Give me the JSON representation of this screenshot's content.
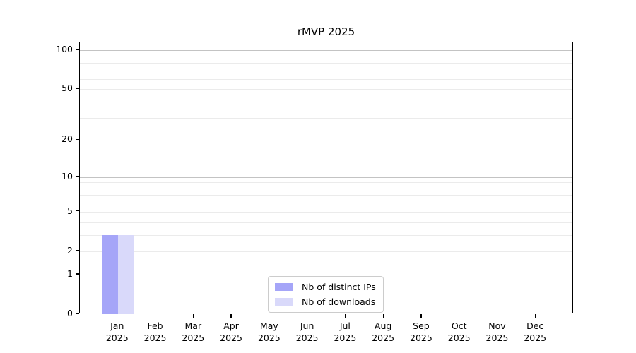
{
  "chart_data": {
    "type": "bar",
    "title": "rMVP 2025",
    "xlabel": "",
    "ylabel": "",
    "yscale": "log1p",
    "ylim": [
      0,
      115
    ],
    "grid": true,
    "legend_position": "lower center",
    "categories": [
      "Jan",
      "Feb",
      "Mar",
      "Apr",
      "May",
      "Jun",
      "Jul",
      "Aug",
      "Sep",
      "Oct",
      "Nov",
      "Dec"
    ],
    "category_year": "2025",
    "ytick_labels": [
      "0",
      "1",
      "2",
      "5",
      "10",
      "20",
      "50",
      "100"
    ],
    "ytick_values": [
      0,
      1,
      2,
      5,
      10,
      20,
      50,
      100
    ],
    "major_gridline_values": [
      1,
      10,
      100
    ],
    "minor_gridline_values": [
      2,
      3,
      4,
      5,
      6,
      7,
      8,
      9,
      20,
      30,
      40,
      50,
      60,
      70,
      80,
      90
    ],
    "series": [
      {
        "name": "Nb of distinct IPs",
        "color": "#a5a5f8",
        "values": [
          3,
          0,
          0,
          0,
          0,
          0,
          0,
          0,
          0,
          0,
          0,
          0
        ]
      },
      {
        "name": "Nb of downloads",
        "color": "#d9d9fa",
        "values": [
          3,
          0,
          0,
          0,
          0,
          0,
          0,
          0,
          0,
          0,
          0,
          0
        ]
      }
    ],
    "colors": {
      "major_gridline": "#c3c3c3",
      "minor_gridline": "#ebebeb",
      "axis": "#000000",
      "legend_border": "#cccccc"
    }
  }
}
